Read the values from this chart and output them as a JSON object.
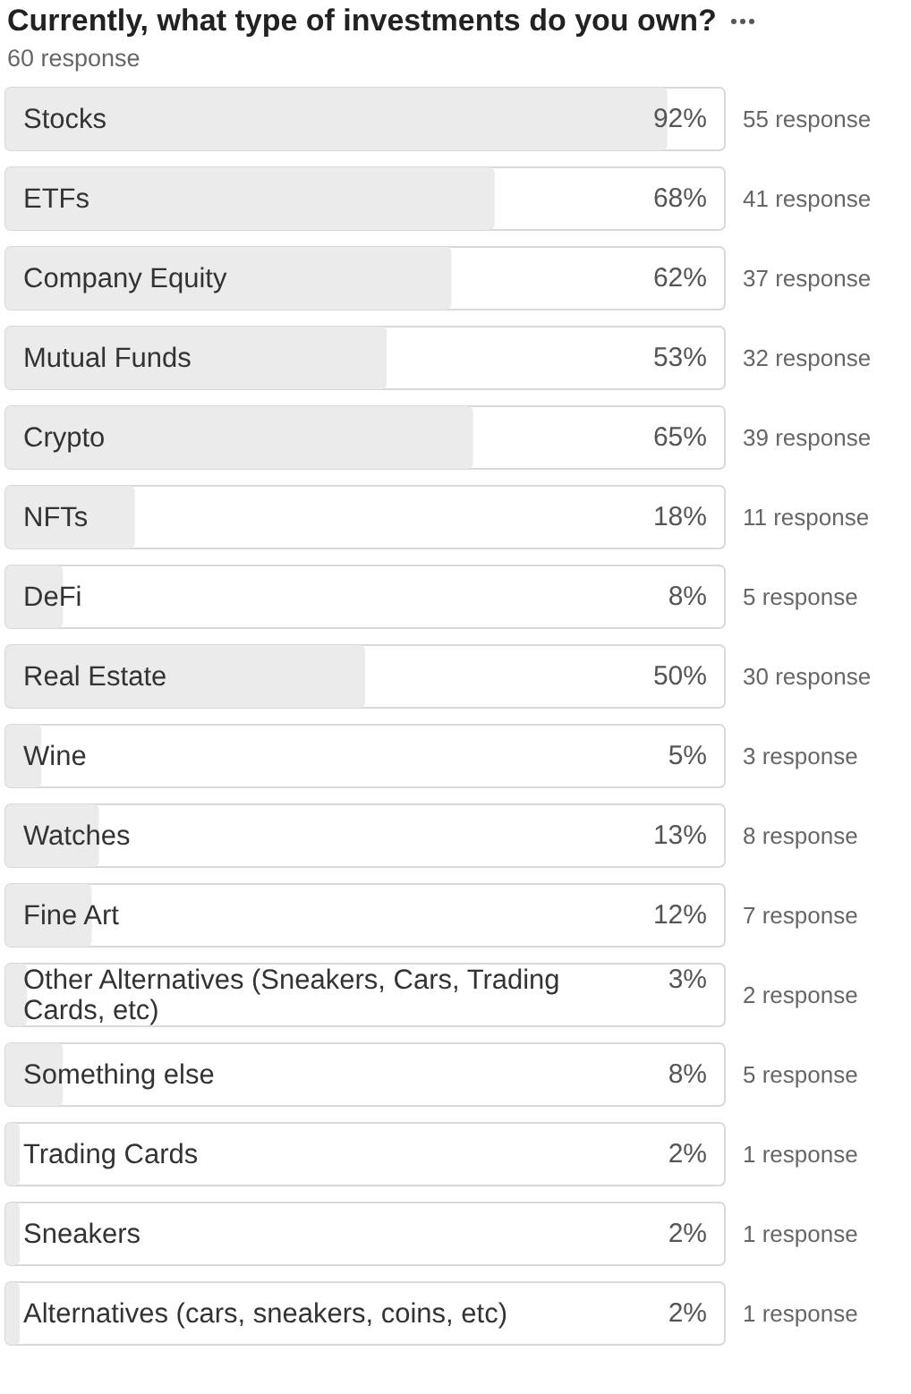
{
  "chart_data": {
    "type": "bar",
    "orientation": "horizontal",
    "title": "Currently, what type of investments do you own?",
    "subtitle": "60 response",
    "categories": [
      "Stocks",
      "ETFs",
      "Company Equity",
      "Mutual Funds",
      "Crypto",
      "NFTs",
      "DeFi",
      "Real Estate",
      "Wine",
      "Watches",
      "Fine Art",
      "Other Alternatives (Sneakers, Cars, Trading Cards, etc)",
      "Something else",
      "Trading Cards",
      "Sneakers",
      "Alternatives (cars, sneakers, coins, etc)"
    ],
    "values": [
      92,
      68,
      62,
      53,
      65,
      18,
      8,
      50,
      5,
      13,
      12,
      3,
      8,
      2,
      2,
      2
    ],
    "value_labels": [
      "92%",
      "68%",
      "62%",
      "53%",
      "65%",
      "18%",
      "8%",
      "50%",
      "5%",
      "13%",
      "12%",
      "3%",
      "8%",
      "2%",
      "2%",
      "2%"
    ],
    "annotations": [
      "55 response",
      "41 response",
      "37 response",
      "32 response",
      "39 response",
      "11 response",
      "5 response",
      "30 response",
      "3 response",
      "8 response",
      "7 response",
      "2 response",
      "5 response",
      "1 response",
      "1 response",
      "1 response"
    ],
    "color": "#ebebeb",
    "xlim": [
      0,
      100
    ],
    "grid": false,
    "legend": false
  }
}
